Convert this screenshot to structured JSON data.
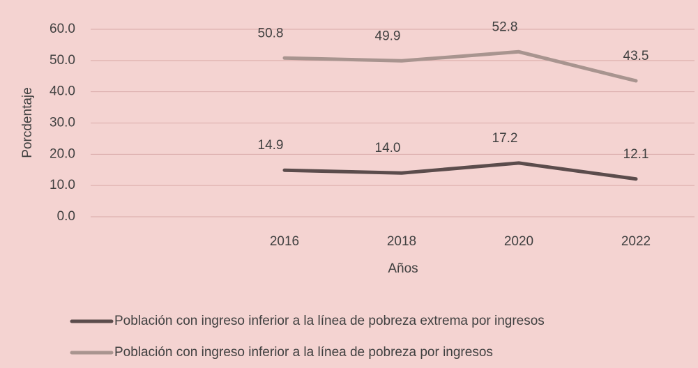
{
  "chart_data": {
    "type": "line",
    "categories": [
      null,
      "2016",
      "2018",
      "2020",
      "2022"
    ],
    "series": [
      {
        "name": "Población con ingreso inferior a la línea de pobreza extrema por ingresos",
        "color": "#5b4c4c",
        "values": [
          null,
          14.9,
          14.0,
          17.2,
          12.1
        ],
        "value_labels": [
          null,
          "14.9",
          "14.0",
          "17.2",
          "12.1"
        ]
      },
      {
        "name": "Población con ingreso inferior a la línea de pobreza por ingresos",
        "color": "#a8948f",
        "values": [
          null,
          50.8,
          49.9,
          52.8,
          43.5
        ],
        "value_labels": [
          null,
          "50.8",
          "49.9",
          "52.8",
          "43.5"
        ]
      }
    ],
    "y_label": "Porcdentaje",
    "x_label": "Años",
    "ylim": [
      0,
      60
    ],
    "yticks": [
      {
        "value": 0,
        "label": "0.0"
      },
      {
        "value": 10,
        "label": "10.0"
      },
      {
        "value": 20,
        "label": "20.0"
      },
      {
        "value": 30,
        "label": "30.0"
      },
      {
        "value": 40,
        "label": "40.0"
      },
      {
        "value": 50,
        "label": "50.0"
      },
      {
        "value": 60,
        "label": "60.0"
      }
    ],
    "grid": true
  }
}
